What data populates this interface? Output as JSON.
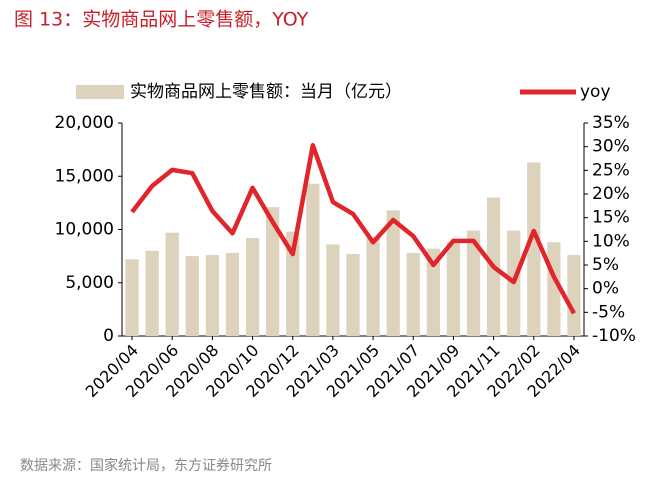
{
  "chart_data": {
    "type": "bar_line",
    "title": "图 13：实物商品网上零售额，YOY",
    "source": "数据来源：国家统计局，东方证券研究所",
    "categories": [
      "2020/04",
      null,
      "2020/06",
      null,
      "2020/08",
      null,
      "2020/10",
      null,
      "2020/12",
      null,
      "2021/03",
      null,
      "2021/05",
      null,
      "2021/07",
      null,
      "2021/09",
      null,
      "2021/11",
      null,
      "2022/02",
      null,
      "2022/04"
    ],
    "series": [
      {
        "name": "实物商品网上零售额：当月（亿元）",
        "color": "#ddd2bc",
        "kind": "bar",
        "axis": "y",
        "values": [
          7200,
          8000,
          9700,
          7500,
          7600,
          7800,
          9200,
          12100,
          9800,
          14300,
          8600,
          7700,
          9200,
          11800,
          7800,
          8200,
          8800,
          9900,
          13000,
          9900,
          16300,
          8800,
          7600
        ]
      },
      {
        "name": "yoy",
        "color": "#e0262b",
        "kind": "line",
        "axis": "y2",
        "values": [
          16.2,
          21.7,
          25.1,
          24.4,
          16.4,
          11.7,
          21.3,
          14.1,
          7.3,
          30.3,
          18.3,
          15.8,
          9.8,
          14.5,
          11.1,
          5.0,
          10.1,
          10.1,
          4.6,
          1.4,
          12.2,
          2.5,
          -5.2
        ]
      }
    ],
    "ylim": [
      0,
      20000
    ],
    "yticks": [
      0,
      {
        "value": 5000,
        "label": "5,000"
      },
      {
        "value": 10000,
        "label": "10,000"
      },
      {
        "value": 15000,
        "label": "15,000"
      },
      {
        "value": 20000,
        "label": "20,000"
      }
    ],
    "y2lim": [
      -10,
      35
    ],
    "y2ticks": [
      {
        "value": -10,
        "label": "-10%"
      },
      {
        "value": -5,
        "label": "-5%"
      },
      {
        "value": 0,
        "label": "0%"
      },
      {
        "value": 5,
        "label": "5%"
      },
      {
        "value": 10,
        "label": "10%"
      },
      {
        "value": 15,
        "label": "15%"
      },
      {
        "value": 20,
        "label": "20%"
      },
      {
        "value": 25,
        "label": "25%"
      },
      {
        "value": 30,
        "label": "30%"
      },
      {
        "value": 35,
        "label": "35%"
      }
    ],
    "legend": "top"
  }
}
